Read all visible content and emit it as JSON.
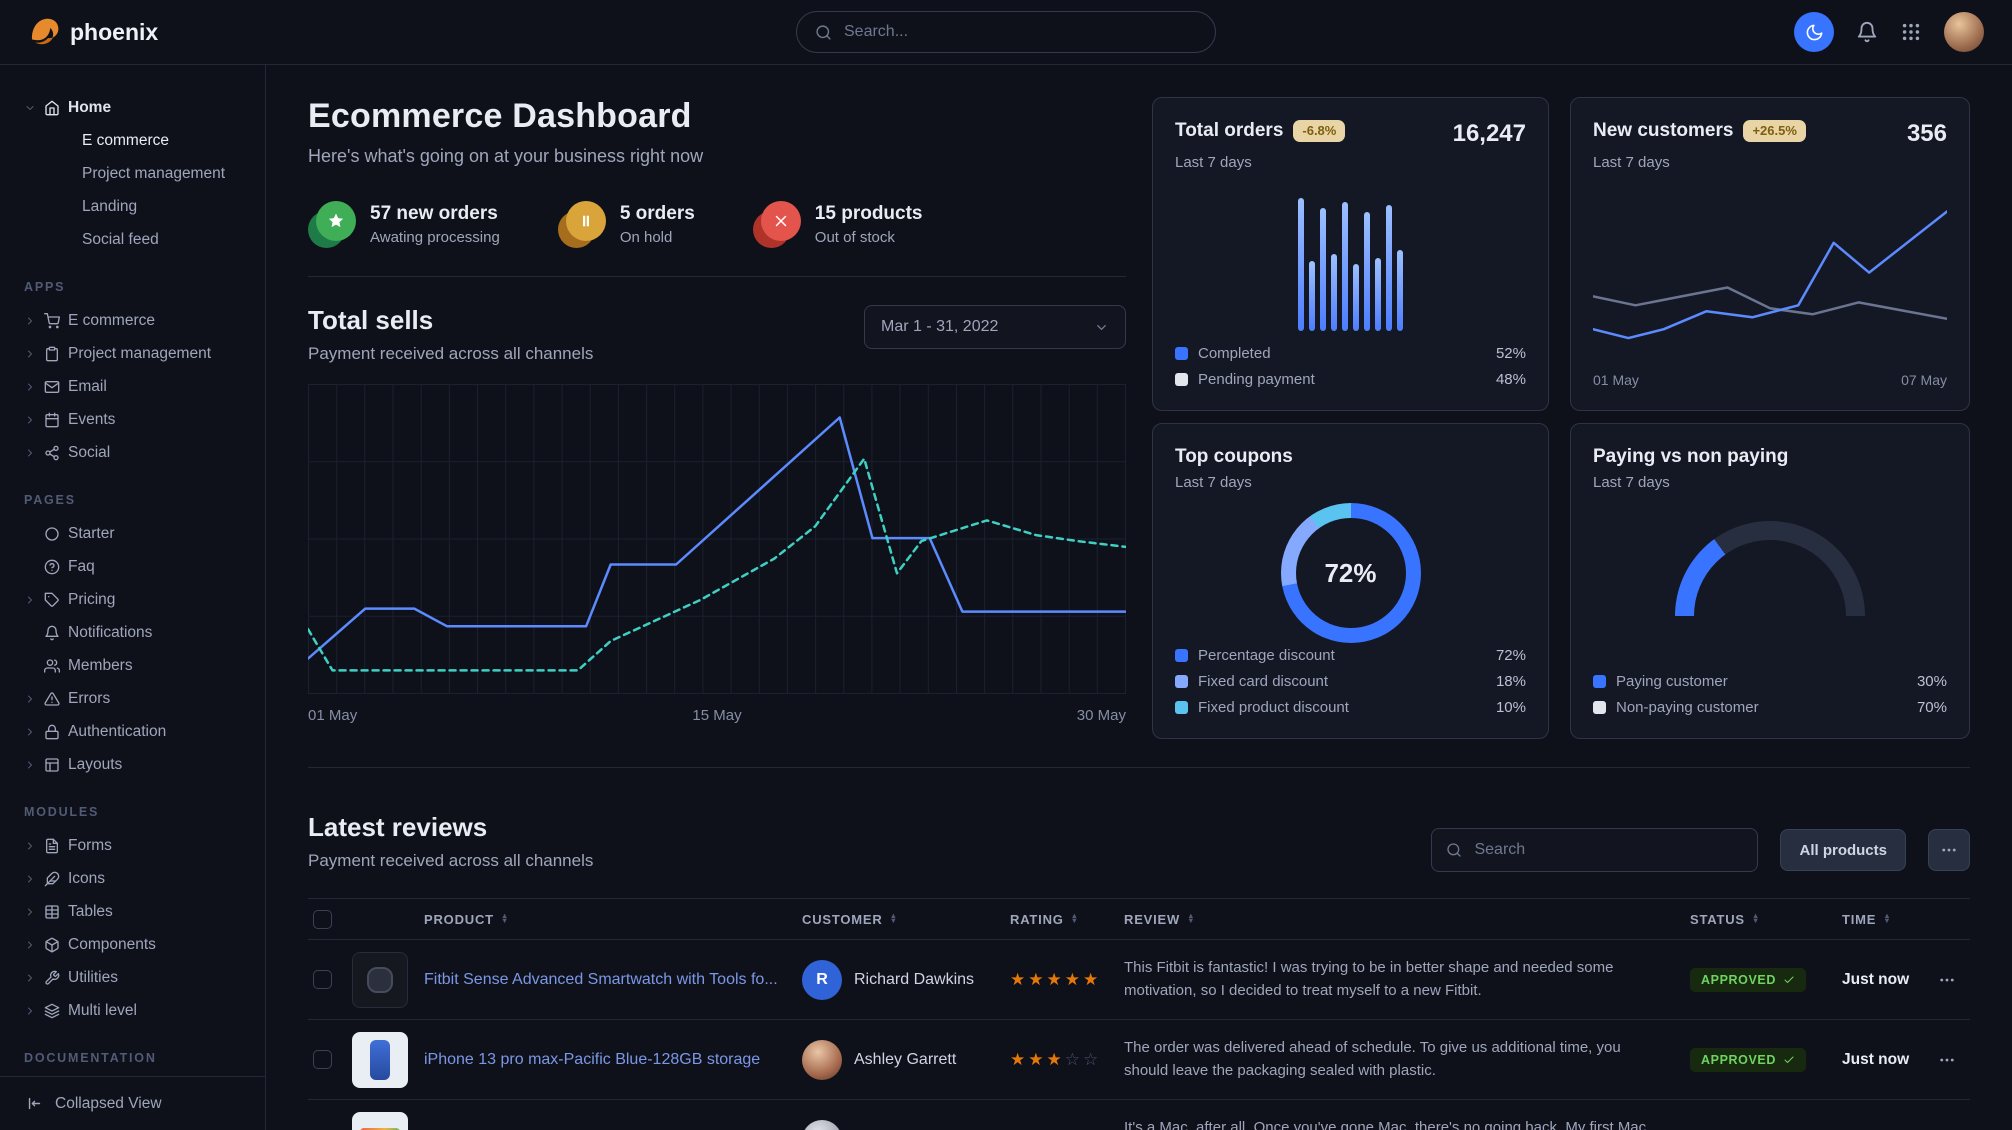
{
  "navbar": {
    "brand": "phoenix",
    "search_placeholder": "Search...",
    "icons": [
      "moon",
      "bell",
      "grid9",
      "avatar"
    ]
  },
  "sidebar": {
    "home": {
      "label": "Home",
      "icon": "home",
      "children": [
        {
          "label": "E commerce"
        },
        {
          "label": "Project management"
        },
        {
          "label": "Landing"
        },
        {
          "label": "Social feed"
        }
      ]
    },
    "sections": [
      {
        "title": "APPS",
        "items": [
          {
            "label": "E commerce",
            "icon": "shopping-cart",
            "expandable": true
          },
          {
            "label": "Project management",
            "icon": "clipboard",
            "expandable": true
          },
          {
            "label": "Email",
            "icon": "mail",
            "expandable": true
          },
          {
            "label": "Events",
            "icon": "calendar",
            "expandable": true
          },
          {
            "label": "Social",
            "icon": "share",
            "expandable": true
          }
        ]
      },
      {
        "title": "PAGES",
        "items": [
          {
            "label": "Starter",
            "icon": "circle",
            "expandable": false
          },
          {
            "label": "Faq",
            "icon": "help-circle",
            "expandable": false
          },
          {
            "label": "Pricing",
            "icon": "tag",
            "expandable": true
          },
          {
            "label": "Notifications",
            "icon": "bell",
            "expandable": false
          },
          {
            "label": "Members",
            "icon": "users",
            "expandable": false
          },
          {
            "label": "Errors",
            "icon": "alert-triangle",
            "expandable": true
          },
          {
            "label": "Authentication",
            "icon": "lock",
            "expandable": true
          },
          {
            "label": "Layouts",
            "icon": "layout",
            "expandable": true
          }
        ]
      },
      {
        "title": "MODULES",
        "items": [
          {
            "label": "Forms",
            "icon": "file-text",
            "expandable": true
          },
          {
            "label": "Icons",
            "icon": "feather",
            "expandable": true
          },
          {
            "label": "Tables",
            "icon": "table",
            "expandable": true
          },
          {
            "label": "Components",
            "icon": "box",
            "expandable": true
          },
          {
            "label": "Utilities",
            "icon": "tool",
            "expandable": true
          },
          {
            "label": "Multi level",
            "icon": "layers",
            "expandable": true
          }
        ]
      },
      {
        "title": "DOCUMENTATION",
        "items": []
      }
    ],
    "footer": {
      "label": "Collapsed View",
      "icon": "collapse"
    }
  },
  "header": {
    "title": "Ecommerce Dashboard",
    "subtitle": "Here's what's going on at your business right now",
    "stats": [
      {
        "value": "57 new orders",
        "caption": "Awating processing",
        "icon": "star-fill",
        "color": "#3fae56",
        "shade": "#1e7a46"
      },
      {
        "value": "5 orders",
        "caption": "On hold",
        "icon": "pause",
        "color": "#d9a53a",
        "shade": "#a66d1d"
      },
      {
        "value": "15 products",
        "caption": "Out of stock",
        "icon": "x",
        "color": "#e3544c",
        "shade": "#b03329"
      }
    ]
  },
  "total_sells": {
    "title": "Total sells",
    "subtitle": "Payment received across all channels",
    "date_range": "Mar 1 - 31, 2022",
    "x_labels": [
      "01 May",
      "15 May",
      "30 May"
    ]
  },
  "cards": {
    "total_orders": {
      "title": "Total orders",
      "badge": "-6.8%",
      "caption": "Last 7 days",
      "value": "16,247",
      "legend": [
        {
          "label": "Completed",
          "value": "52%",
          "color": "#3874ff"
        },
        {
          "label": "Pending payment",
          "value": "48%",
          "color": "#e3e6ed"
        }
      ]
    },
    "new_customers": {
      "title": "New customers",
      "badge": "+26.5%",
      "caption": "Last 7 days",
      "value": "356",
      "x_labels": [
        "01 May",
        "07 May"
      ]
    },
    "top_coupons": {
      "title": "Top coupons",
      "caption": "Last 7 days",
      "center_label": "72%",
      "legend": [
        {
          "label": "Percentage discount",
          "value": "72%",
          "color": "#3874ff"
        },
        {
          "label": "Fixed card discount",
          "value": "18%",
          "color": "#85a9ff"
        },
        {
          "label": "Fixed product discount",
          "value": "10%",
          "color": "#5ac3f0"
        }
      ]
    },
    "paying": {
      "title": "Paying vs non paying",
      "caption": "Last 7 days",
      "legend": [
        {
          "label": "Paying customer",
          "value": "30%",
          "color": "#3874ff"
        },
        {
          "label": "Non-paying customer",
          "value": "70%",
          "color": "#e3e6ed"
        }
      ]
    }
  },
  "reviews": {
    "title": "Latest reviews",
    "subtitle": "Payment received across all channels",
    "search_placeholder": "Search",
    "filter_label": "All products",
    "columns": [
      "PRODUCT",
      "CUSTOMER",
      "RATING",
      "REVIEW",
      "STATUS",
      "TIME"
    ],
    "rows": [
      {
        "product": "Fitbit Sense Advanced Smartwatch with Tools fo...",
        "thumb": "watch",
        "customer": "Richard Dawkins",
        "avatar_initial": "R",
        "rating": 5,
        "review": "This Fitbit is fantastic! I was trying to be in better shape and needed some motivation, so I decided to treat myself to a new Fitbit.",
        "status": "APPROVED",
        "time": "Just now"
      },
      {
        "product": "iPhone 13 pro max-Pacific Blue-128GB storage",
        "thumb": "phone",
        "customer": "Ashley Garrett",
        "avatar_initial": "",
        "rating": 3,
        "review": "The order was delivered ahead of schedule. To give us additional time, you should leave the packaging sealed with plastic.",
        "status": "APPROVED",
        "time": "Just now"
      },
      {
        "product": "",
        "thumb": "laptop",
        "customer": "",
        "avatar_initial": "",
        "rating": 0,
        "review": "It's a Mac, after all. Once you've gone Mac, there's no going back. My first Mac lasted...",
        "status": "",
        "time": ""
      }
    ]
  },
  "charts": {
    "total_sells": {
      "type": "line",
      "series": [
        {
          "name": "current",
          "style": "solid",
          "color": "#5c8bff",
          "points": [
            [
              0,
              10
            ],
            [
              7,
              27
            ],
            [
              13,
              27
            ],
            [
              17,
              21
            ],
            [
              34,
              21
            ],
            [
              37,
              42
            ],
            [
              45,
              42
            ],
            [
              65,
              92
            ],
            [
              69,
              51
            ],
            [
              76,
              51
            ],
            [
              80,
              26
            ],
            [
              100,
              26
            ]
          ]
        },
        {
          "name": "previous",
          "style": "dashed",
          "color": "#3fd0c4",
          "points": [
            [
              0,
              20
            ],
            [
              3,
              6
            ],
            [
              33,
              6
            ],
            [
              37,
              16
            ],
            [
              48,
              30
            ],
            [
              57,
              44
            ],
            [
              62,
              55
            ],
            [
              68,
              78
            ],
            [
              72,
              39
            ],
            [
              75,
              50
            ],
            [
              83,
              57
            ],
            [
              89,
              52
            ],
            [
              94,
              50
            ],
            [
              100,
              48
            ]
          ]
        }
      ]
    },
    "new_customers": {
      "type": "line",
      "series": [
        {
          "name": "previous",
          "style": "solid",
          "color": "#6b7490",
          "points": [
            [
              0,
              40
            ],
            [
              12,
              34
            ],
            [
              25,
              40
            ],
            [
              38,
              46
            ],
            [
              50,
              32
            ],
            [
              62,
              28
            ],
            [
              75,
              36
            ],
            [
              100,
              25
            ]
          ]
        },
        {
          "name": "current",
          "style": "solid",
          "color": "#5c8bff",
          "points": [
            [
              0,
              18
            ],
            [
              10,
              12
            ],
            [
              20,
              18
            ],
            [
              32,
              30
            ],
            [
              45,
              26
            ],
            [
              58,
              34
            ],
            [
              68,
              76
            ],
            [
              78,
              56
            ],
            [
              100,
              97
            ]
          ]
        }
      ]
    },
    "total_orders_bars": {
      "type": "bar",
      "values": [
        95,
        50,
        88,
        55,
        92,
        48,
        85,
        52,
        90,
        58
      ]
    },
    "top_coupons_donut": {
      "type": "pie",
      "segments": [
        {
          "label": "Percentage discount",
          "value": 72,
          "color": "#3874ff"
        },
        {
          "label": "Fixed card discount",
          "value": 18,
          "color": "#85a9ff"
        },
        {
          "label": "Fixed product discount",
          "value": 10,
          "color": "#5ac3f0"
        }
      ]
    },
    "paying_gauge": {
      "type": "gauge",
      "segments": [
        {
          "label": "Paying customer",
          "value": 30,
          "color": "#3874ff"
        },
        {
          "label": "Non-paying customer",
          "value": 70,
          "color": "#272e3f"
        }
      ]
    }
  }
}
